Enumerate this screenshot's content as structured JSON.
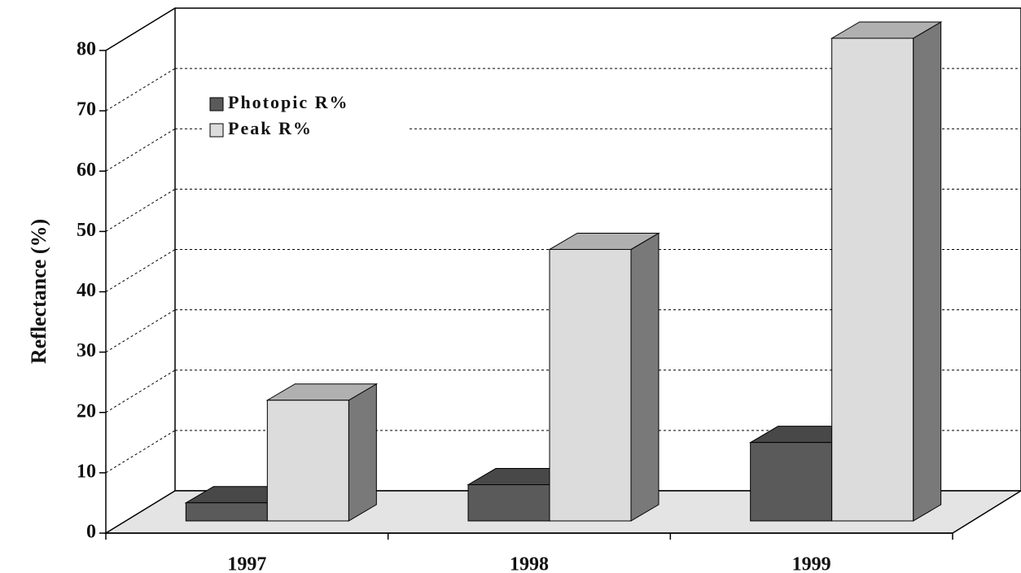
{
  "chart_data": {
    "type": "bar3d",
    "y_label": "Reflectance (%)",
    "categories": [
      "1997",
      "1998",
      "1999"
    ],
    "series": [
      {
        "name": "Photopic R%",
        "color": "#5a5a5a",
        "values": [
          3,
          6,
          13
        ]
      },
      {
        "name": "Peak R%",
        "color": "#dcdcdc",
        "values": [
          20,
          45,
          80
        ]
      }
    ],
    "ylim": [
      0,
      80
    ],
    "yticks": [
      0,
      10,
      20,
      30,
      40,
      50,
      60,
      70,
      80
    ],
    "grid": true,
    "legend": "top-left"
  }
}
